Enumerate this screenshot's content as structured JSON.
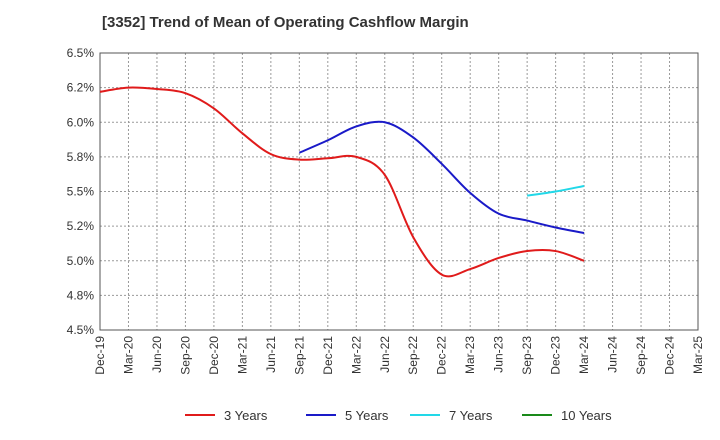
{
  "chart_data": {
    "type": "line",
    "title": "[3352]  Trend of Mean of Operating Cashflow Margin",
    "x": [
      "Dec-19",
      "Mar-20",
      "Jun-20",
      "Sep-20",
      "Dec-20",
      "Mar-21",
      "Jun-21",
      "Sep-21",
      "Dec-21",
      "Mar-22",
      "Jun-22",
      "Sep-22",
      "Dec-22",
      "Mar-23",
      "Jun-23",
      "Sep-23",
      "Dec-23",
      "Mar-24",
      "Jun-24",
      "Sep-24",
      "Dec-24",
      "Mar-25"
    ],
    "ylim": [
      4.5,
      6.5
    ],
    "yticks": [
      4.5,
      4.75,
      5.0,
      5.25,
      5.5,
      5.75,
      6.0,
      6.25,
      6.5
    ],
    "ytick_labels": [
      "4.5%",
      "4.8%",
      "5.0%",
      "5.2%",
      "5.5%",
      "5.8%",
      "6.0%",
      "6.2%",
      "6.5%"
    ],
    "grid": true,
    "legend_position": "bottom",
    "series": [
      {
        "name": "3 Years",
        "color": "#e01b1b",
        "values": [
          6.22,
          6.25,
          6.24,
          6.21,
          6.1,
          5.92,
          5.77,
          5.73,
          5.74,
          5.75,
          5.62,
          5.17,
          4.9,
          4.94,
          5.02,
          5.07,
          5.07,
          5.0,
          null,
          null,
          null,
          null
        ]
      },
      {
        "name": "5 Years",
        "color": "#1a1ac8",
        "values": [
          null,
          null,
          null,
          null,
          null,
          null,
          null,
          5.78,
          5.87,
          5.97,
          6.0,
          5.89,
          5.7,
          5.49,
          5.34,
          5.29,
          5.24,
          5.2,
          null,
          null,
          null,
          null
        ]
      },
      {
        "name": "7 Years",
        "color": "#22d8e8",
        "values": [
          null,
          null,
          null,
          null,
          null,
          null,
          null,
          null,
          null,
          null,
          null,
          null,
          null,
          null,
          null,
          5.47,
          5.5,
          5.54,
          null,
          null,
          null,
          null
        ]
      },
      {
        "name": "10 Years",
        "color": "#1a8a1a",
        "values": [
          null,
          null,
          null,
          null,
          null,
          null,
          null,
          null,
          null,
          null,
          null,
          null,
          null,
          null,
          null,
          null,
          null,
          null,
          null,
          null,
          null,
          null
        ]
      }
    ]
  }
}
